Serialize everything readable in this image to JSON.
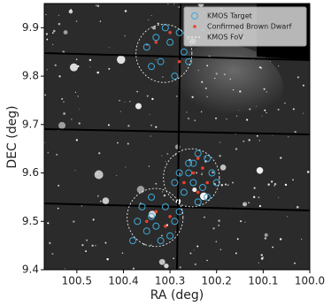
{
  "chart_data": {
    "type": "scatter",
    "x_label": "RA (deg)",
    "y_label": "DEC (deg)",
    "xlim": [
      100.57,
      100.0
    ],
    "ylim": [
      9.4,
      9.95
    ],
    "xticks": [
      100.5,
      100.4,
      100.3,
      100.2,
      100.1,
      {
        "value": 100.0,
        "label": "100.0"
      }
    ],
    "yticks": [
      9.4,
      9.5,
      9.6,
      9.7,
      9.8,
      9.9
    ],
    "legend": "upper right",
    "series": [
      {
        "name": "KMOS Target",
        "color": "#3fa9d9",
        "marker": "open-circle",
        "x": [
          100.35,
          100.33,
          100.3,
          100.28,
          100.27,
          100.32,
          100.34,
          100.29,
          100.31,
          100.26,
          100.22,
          100.24,
          100.26,
          100.28,
          100.25,
          100.23,
          100.21,
          100.27,
          100.24,
          100.29,
          100.22,
          100.26,
          100.2,
          100.25,
          100.36,
          100.34,
          100.31,
          100.29,
          100.33,
          100.35,
          100.37,
          100.3,
          100.32,
          100.38,
          100.28,
          100.34
        ],
        "y": [
          9.86,
          9.88,
          9.87,
          9.89,
          9.85,
          9.83,
          9.82,
          9.8,
          9.9,
          9.83,
          9.63,
          9.64,
          9.62,
          9.6,
          9.58,
          9.57,
          9.6,
          9.56,
          9.54,
          9.58,
          9.55,
          9.6,
          9.58,
          9.62,
          9.53,
          9.55,
          9.53,
          9.5,
          9.49,
          9.48,
          9.5,
          9.47,
          9.46,
          9.46,
          9.52,
          9.51
        ]
      },
      {
        "name": "Confirmed Brown Dwarf",
        "color": "#e8412c",
        "marker": "dot",
        "x": [
          100.3,
          100.28,
          100.33,
          100.24,
          100.25,
          100.22,
          100.27,
          100.24,
          100.23,
          100.33,
          100.3,
          100.35,
          100.31
        ],
        "y": [
          9.89,
          9.83,
          9.87,
          9.63,
          9.6,
          9.58,
          9.58,
          9.56,
          9.61,
          9.52,
          9.51,
          9.5,
          9.49
        ]
      },
      {
        "name": "KMOS FoV",
        "color": "#ffffff",
        "marker": "dashed-circle",
        "x": [
          100.313,
          100.254,
          100.332
        ],
        "y": [
          9.847,
          9.59,
          9.508
        ],
        "r": [
          0.06,
          0.06,
          0.06
        ]
      }
    ]
  }
}
